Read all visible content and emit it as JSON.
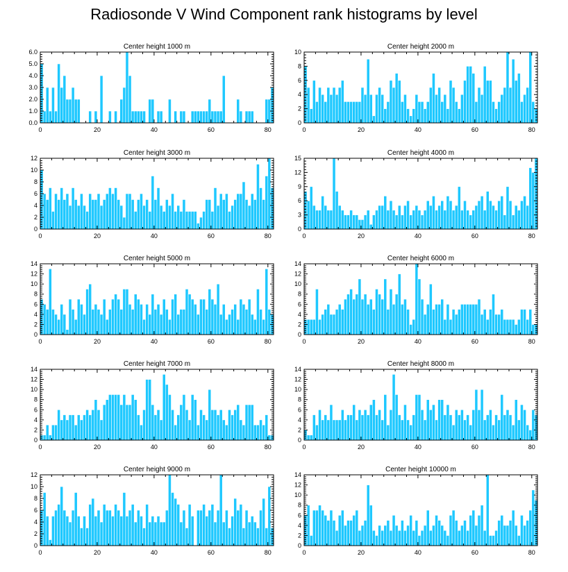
{
  "title": "Radiosonde V Wind Component rank histograms by level",
  "colors": {
    "bar": "#1ec8ff",
    "axis": "#000000",
    "background": "#ffffff"
  },
  "chart_data": [
    {
      "type": "bar",
      "title": "Center height 1000 m",
      "xlim": [
        0,
        82
      ],
      "ylim": [
        0,
        6
      ],
      "xticks": [
        0,
        20,
        40,
        60,
        80
      ],
      "yticks": [
        0,
        1,
        2,
        3,
        4,
        5,
        6
      ],
      "ytick_labels": [
        "0.0",
        "1.0",
        "2.0",
        "3.0",
        "4.0",
        "5.0",
        "6.0"
      ],
      "values": [
        5,
        1,
        3,
        1,
        3,
        1,
        5,
        3,
        4,
        2,
        2,
        3,
        2,
        2,
        0,
        0,
        0,
        1,
        0,
        1,
        0,
        4,
        0,
        0,
        1,
        0,
        1,
        0,
        2,
        3,
        6,
        4,
        1,
        1,
        1,
        1,
        1,
        0,
        2,
        2,
        0,
        1,
        1,
        0,
        0,
        2,
        0,
        1,
        0,
        1,
        1,
        0,
        0,
        1,
        1,
        1,
        1,
        1,
        1,
        2,
        1,
        1,
        1,
        1,
        4,
        0,
        0,
        0,
        0,
        2,
        1,
        0,
        1,
        1,
        1,
        0,
        0,
        0,
        0,
        2,
        2,
        3
      ]
    },
    {
      "type": "bar",
      "title": "Center height 2000 m",
      "xlim": [
        0,
        82
      ],
      "ylim": [
        0,
        10
      ],
      "xticks": [
        0,
        20,
        40,
        60,
        80
      ],
      "yticks": [
        0,
        2,
        4,
        6,
        8,
        10
      ],
      "ytick_labels": [
        "0",
        "2",
        "4",
        "6",
        "8",
        "10"
      ],
      "values": [
        8,
        5,
        2,
        6,
        3,
        5,
        4,
        3,
        5,
        4,
        5,
        4,
        5,
        6,
        3,
        3,
        3,
        3,
        3,
        3,
        5,
        4,
        9,
        4,
        1,
        4,
        5,
        4,
        2,
        3,
        6,
        5,
        7,
        6,
        3,
        4,
        2,
        1,
        2,
        4,
        3,
        3,
        2,
        3,
        5,
        7,
        4,
        5,
        3,
        4,
        2,
        6,
        5,
        3,
        2,
        4,
        6,
        8,
        8,
        7,
        3,
        5,
        4,
        8,
        6,
        6,
        3,
        2,
        3,
        4,
        5,
        10,
        5,
        9,
        6,
        7,
        3,
        4,
        5,
        10,
        3,
        2
      ]
    },
    {
      "type": "bar",
      "title": "Center height 3000 m",
      "xlim": [
        0,
        82
      ],
      "ylim": [
        0,
        12
      ],
      "xticks": [
        0,
        20,
        40,
        60,
        80
      ],
      "yticks": [
        0,
        2,
        4,
        6,
        8,
        10,
        12
      ],
      "ytick_labels": [
        "0",
        "2",
        "4",
        "6",
        "8",
        "10",
        "12"
      ],
      "values": [
        10,
        6,
        5,
        7,
        3,
        6,
        5,
        7,
        5,
        6,
        4,
        7,
        5,
        4,
        6,
        4,
        3,
        6,
        5,
        5,
        6,
        4,
        5,
        6,
        7,
        6,
        7,
        5,
        4,
        2,
        6,
        6,
        5,
        3,
        5,
        6,
        4,
        5,
        3,
        9,
        5,
        7,
        4,
        3,
        5,
        4,
        6,
        3,
        4,
        3,
        5,
        3,
        3,
        3,
        3,
        1,
        2,
        3,
        5,
        5,
        3,
        7,
        4,
        6,
        5,
        6,
        3,
        4,
        5,
        6,
        6,
        8,
        5,
        4,
        6,
        5,
        11,
        7,
        5,
        9,
        12,
        7
      ]
    },
    {
      "type": "bar",
      "title": "Center height 4000 m",
      "xlim": [
        0,
        82
      ],
      "ylim": [
        0,
        15
      ],
      "xticks": [
        0,
        20,
        40,
        60,
        80
      ],
      "yticks": [
        0,
        3,
        6,
        9,
        12,
        15
      ],
      "ytick_labels": [
        "0",
        "3",
        "6",
        "9",
        "12",
        "15"
      ],
      "values": [
        8,
        6,
        9,
        5,
        4,
        4,
        7,
        5,
        4,
        4,
        15,
        8,
        5,
        4,
        3,
        3,
        4,
        3,
        3,
        2,
        2,
        3,
        4,
        1,
        3,
        4,
        5,
        5,
        7,
        4,
        6,
        4,
        3,
        5,
        3,
        5,
        6,
        3,
        4,
        5,
        4,
        3,
        4,
        6,
        5,
        7,
        4,
        5,
        6,
        4,
        7,
        6,
        4,
        5,
        9,
        4,
        6,
        4,
        3,
        4,
        5,
        6,
        7,
        4,
        8,
        6,
        5,
        4,
        6,
        7,
        3,
        9,
        6,
        3,
        5,
        4,
        6,
        7,
        5,
        13,
        12,
        15
      ]
    },
    {
      "type": "bar",
      "title": "Center height 5000 m",
      "xlim": [
        0,
        82
      ],
      "ylim": [
        0,
        14
      ],
      "xticks": [
        0,
        20,
        40,
        60,
        80
      ],
      "yticks": [
        0,
        2,
        4,
        6,
        8,
        10,
        12,
        14
      ],
      "ytick_labels": [
        "0",
        "2",
        "4",
        "6",
        "8",
        "10",
        "12",
        "14"
      ],
      "values": [
        7,
        6,
        5,
        13,
        5,
        4,
        3,
        6,
        4,
        1,
        7,
        5,
        3,
        7,
        6,
        4,
        9,
        10,
        5,
        6,
        5,
        4,
        7,
        3,
        5,
        7,
        8,
        7,
        5,
        9,
        9,
        6,
        5,
        8,
        7,
        6,
        3,
        6,
        4,
        8,
        5,
        6,
        4,
        7,
        5,
        3,
        7,
        8,
        4,
        5,
        5,
        9,
        8,
        7,
        6,
        4,
        7,
        7,
        5,
        9,
        7,
        6,
        10,
        4,
        6,
        3,
        4,
        5,
        6,
        3,
        7,
        6,
        5,
        7,
        4,
        3,
        9,
        5,
        3,
        13,
        5,
        4
      ]
    },
    {
      "type": "bar",
      "title": "Center height 6000 m",
      "xlim": [
        0,
        82
      ],
      "ylim": [
        0,
        14
      ],
      "xticks": [
        0,
        20,
        40,
        60,
        80
      ],
      "yticks": [
        0,
        2,
        4,
        6,
        8,
        10,
        12,
        14
      ],
      "ytick_labels": [
        "0",
        "2",
        "4",
        "6",
        "8",
        "10",
        "12",
        "14"
      ],
      "values": [
        3,
        3,
        3,
        3,
        9,
        3,
        4,
        5,
        6,
        4,
        4,
        5,
        6,
        5,
        7,
        8,
        9,
        7,
        8,
        11,
        7,
        8,
        6,
        7,
        5,
        9,
        8,
        7,
        11,
        5,
        9,
        6,
        8,
        12,
        6,
        7,
        5,
        2,
        3,
        14,
        11,
        7,
        4,
        6,
        10,
        5,
        6,
        6,
        7,
        3,
        6,
        3,
        5,
        4,
        5,
        6,
        6,
        6,
        6,
        6,
        6,
        7,
        4,
        5,
        3,
        5,
        8,
        4,
        4,
        5,
        3,
        3,
        3,
        3,
        2,
        3,
        5,
        5,
        3,
        5,
        2,
        2
      ]
    },
    {
      "type": "bar",
      "title": "Center height 7000 m",
      "xlim": [
        0,
        82
      ],
      "ylim": [
        0,
        14
      ],
      "xticks": [
        0,
        20,
        40,
        60,
        80
      ],
      "yticks": [
        0,
        2,
        4,
        6,
        8,
        10,
        12,
        14
      ],
      "ytick_labels": [
        "0",
        "2",
        "4",
        "6",
        "8",
        "10",
        "12",
        "14"
      ],
      "values": [
        1,
        1,
        3,
        1,
        3,
        3,
        6,
        4,
        5,
        4,
        5,
        5,
        3,
        5,
        4,
        5,
        6,
        5,
        6,
        8,
        6,
        4,
        7,
        8,
        9,
        9,
        9,
        9,
        7,
        9,
        7,
        7,
        9,
        8,
        5,
        3,
        6,
        12,
        12,
        7,
        5,
        6,
        4,
        13,
        11,
        9,
        6,
        3,
        5,
        7,
        9,
        6,
        4,
        9,
        8,
        3,
        6,
        5,
        4,
        10,
        6,
        6,
        5,
        6,
        4,
        3,
        6,
        5,
        6,
        7,
        4,
        3,
        7,
        7,
        7,
        3,
        3,
        4,
        3,
        5,
        1,
        1
      ]
    },
    {
      "type": "bar",
      "title": "Center height 8000 m",
      "xlim": [
        0,
        82
      ],
      "ylim": [
        0,
        14
      ],
      "xticks": [
        0,
        20,
        40,
        60,
        80
      ],
      "yticks": [
        0,
        2,
        4,
        6,
        8,
        10,
        12,
        14
      ],
      "ytick_labels": [
        "0",
        "2",
        "4",
        "6",
        "8",
        "10",
        "12",
        "14"
      ],
      "values": [
        2,
        1,
        1,
        5,
        3,
        6,
        4,
        5,
        4,
        7,
        4,
        4,
        4,
        6,
        4,
        5,
        5,
        7,
        4,
        6,
        5,
        6,
        5,
        7,
        8,
        5,
        6,
        4,
        9,
        3,
        6,
        13,
        9,
        5,
        4,
        7,
        4,
        3,
        5,
        9,
        9,
        6,
        4,
        8,
        6,
        7,
        4,
        8,
        8,
        5,
        7,
        5,
        3,
        6,
        5,
        6,
        4,
        5,
        3,
        6,
        10,
        6,
        10,
        4,
        5,
        6,
        3,
        5,
        4,
        9,
        5,
        6,
        5,
        3,
        8,
        4,
        7,
        6,
        3,
        2,
        6,
        5
      ]
    },
    {
      "type": "bar",
      "title": "Center height 9000 m",
      "xlim": [
        0,
        82
      ],
      "ylim": [
        0,
        12
      ],
      "xticks": [
        0,
        20,
        40,
        60,
        80
      ],
      "yticks": [
        0,
        2,
        4,
        6,
        8,
        10,
        12
      ],
      "ytick_labels": [
        "0",
        "2",
        "4",
        "6",
        "8",
        "10",
        "12"
      ],
      "values": [
        6,
        9,
        5,
        1,
        5,
        6,
        7,
        10,
        6,
        5,
        4,
        6,
        9,
        5,
        3,
        5,
        3,
        7,
        8,
        5,
        6,
        4,
        7,
        6,
        6,
        5,
        7,
        6,
        5,
        9,
        5,
        6,
        7,
        4,
        6,
        5,
        3,
        7,
        4,
        5,
        4,
        5,
        4,
        4,
        6,
        12,
        9,
        8,
        7,
        4,
        6,
        3,
        7,
        5,
        0,
        6,
        6,
        7,
        5,
        6,
        7,
        4,
        6,
        12,
        4,
        6,
        3,
        5,
        8,
        6,
        7,
        3,
        6,
        4,
        5,
        4,
        3,
        6,
        8,
        3,
        10,
        3
      ]
    },
    {
      "type": "bar",
      "title": "Center height 10000 m",
      "xlim": [
        0,
        82
      ],
      "ylim": [
        0,
        14
      ],
      "xticks": [
        0,
        20,
        40,
        60,
        80
      ],
      "yticks": [
        0,
        2,
        4,
        6,
        8,
        10,
        12,
        14
      ],
      "ytick_labels": [
        "0",
        "2",
        "4",
        "6",
        "8",
        "10",
        "12",
        "14"
      ],
      "values": [
        6,
        8,
        2,
        7,
        7,
        8,
        7,
        6,
        5,
        7,
        5,
        3,
        6,
        7,
        4,
        5,
        5,
        6,
        7,
        3,
        4,
        5,
        12,
        8,
        3,
        2,
        4,
        3,
        4,
        5,
        3,
        6,
        4,
        3,
        5,
        3,
        4,
        6,
        3,
        5,
        2,
        3,
        4,
        7,
        3,
        4,
        6,
        5,
        4,
        3,
        2,
        6,
        7,
        5,
        3,
        4,
        5,
        3,
        6,
        7,
        4,
        6,
        8,
        3,
        14,
        2,
        2,
        3,
        5,
        6,
        4,
        4,
        5,
        7,
        4,
        2,
        6,
        4,
        5,
        7,
        11,
        9
      ]
    }
  ]
}
